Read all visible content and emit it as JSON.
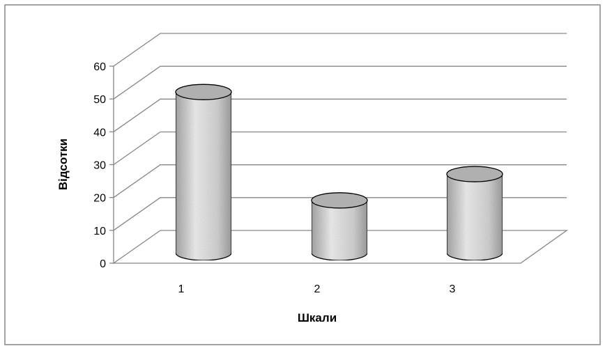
{
  "chart_data": {
    "type": "bar",
    "style": "3d-cylinder",
    "categories": [
      "1",
      "2",
      "3"
    ],
    "values": [
      50,
      17,
      25
    ],
    "title": "",
    "xlabel": "Шкали",
    "ylabel": "Відсотки",
    "ylim": [
      0,
      60
    ],
    "yticks": [
      "0",
      "10",
      "20",
      "30",
      "40",
      "50",
      "60"
    ],
    "grid": true,
    "legend": "none",
    "colors": {
      "bar_light": "#f0f0f0",
      "bar_mid": "#d4d4d4",
      "bar_dark": "#a8a8a8",
      "bar_top": "#b0b0b0",
      "grid": "#868686",
      "frame": "#868686"
    }
  }
}
